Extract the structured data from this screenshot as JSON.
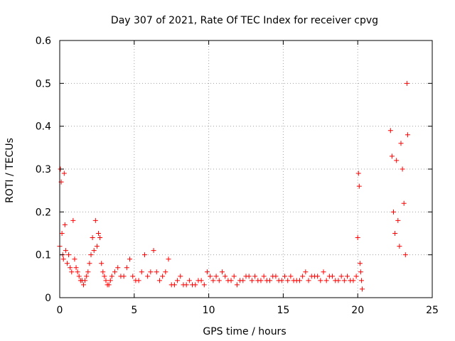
{
  "chart_data": {
    "type": "scatter",
    "title": "Day 307 of 2021, Rate Of TEC Index for receiver cpvg",
    "xlabel": "GPS time / hours",
    "ylabel": "ROTI / TECUs",
    "xlim": [
      0,
      25
    ],
    "ylim": [
      0,
      0.6
    ],
    "xticks": [
      0,
      5,
      10,
      15,
      20,
      25
    ],
    "xtick_labels": [
      "0",
      "5",
      "10",
      "15",
      "20",
      "25"
    ],
    "yticks": [
      0,
      0.1,
      0.2,
      0.3,
      0.4,
      0.5,
      0.6
    ],
    "ytick_labels": [
      "0",
      "0.1",
      "0.2",
      "0.3",
      "0.4",
      "0.5",
      "0.6"
    ],
    "grid": true,
    "marker": "+",
    "series_color": "#ff0000",
    "series": [
      {
        "x": [
          0.0,
          0.05,
          0.1,
          0.15,
          0.2,
          0.25,
          0.3,
          0.35,
          0.4,
          0.5,
          0.6,
          0.7,
          0.8,
          0.9,
          1.0,
          1.1,
          1.2,
          1.3,
          1.4,
          1.5,
          1.6,
          1.7,
          1.8,
          1.9,
          2.0,
          2.1,
          2.2,
          2.3,
          2.4,
          2.5,
          2.6,
          2.7,
          2.8,
          2.9,
          3.0,
          3.1,
          3.2,
          3.3,
          3.4,
          3.5,
          3.7,
          3.9,
          4.1,
          4.3,
          4.5,
          4.7,
          4.9,
          5.1,
          5.3,
          5.5,
          5.7,
          5.9,
          6.1,
          6.3,
          6.5,
          6.7,
          6.9,
          7.1,
          7.3,
          7.5,
          7.7,
          7.9,
          8.1,
          8.3,
          8.5,
          8.7,
          8.9,
          9.1,
          9.3,
          9.5,
          9.7,
          9.9,
          10.1,
          10.3,
          10.5,
          10.7,
          10.9,
          11.1,
          11.3,
          11.5,
          11.7,
          11.9,
          12.1,
          12.3,
          12.5,
          12.7,
          12.9,
          13.1,
          13.3,
          13.5,
          13.7,
          13.9,
          14.1,
          14.3,
          14.5,
          14.7,
          14.9,
          15.1,
          15.3,
          15.5,
          15.7,
          15.9,
          16.1,
          16.3,
          16.5,
          16.7,
          16.9,
          17.1,
          17.3,
          17.5,
          17.7,
          17.9,
          18.1,
          18.3,
          18.5,
          18.7,
          18.9,
          19.1,
          19.3,
          19.5,
          19.7,
          19.9,
          20.0,
          20.05,
          20.1,
          20.15,
          20.2,
          20.25,
          20.3,
          22.2,
          22.3,
          22.4,
          22.5,
          22.6,
          22.7,
          22.8,
          22.9,
          23.0,
          23.1,
          23.2,
          23.3,
          23.35
        ],
        "y": [
          0.12,
          0.3,
          0.27,
          0.15,
          0.1,
          0.09,
          0.29,
          0.17,
          0.11,
          0.08,
          0.1,
          0.07,
          0.06,
          0.18,
          0.09,
          0.07,
          0.06,
          0.05,
          0.04,
          0.04,
          0.03,
          0.04,
          0.05,
          0.06,
          0.08,
          0.1,
          0.14,
          0.11,
          0.18,
          0.12,
          0.15,
          0.14,
          0.08,
          0.06,
          0.05,
          0.04,
          0.03,
          0.03,
          0.04,
          0.05,
          0.06,
          0.07,
          0.05,
          0.05,
          0.07,
          0.09,
          0.05,
          0.04,
          0.04,
          0.06,
          0.1,
          0.05,
          0.06,
          0.11,
          0.06,
          0.04,
          0.05,
          0.06,
          0.09,
          0.03,
          0.03,
          0.04,
          0.05,
          0.03,
          0.03,
          0.04,
          0.03,
          0.03,
          0.04,
          0.04,
          0.03,
          0.06,
          0.05,
          0.04,
          0.05,
          0.04,
          0.06,
          0.05,
          0.04,
          0.04,
          0.05,
          0.03,
          0.04,
          0.04,
          0.05,
          0.05,
          0.04,
          0.05,
          0.04,
          0.04,
          0.05,
          0.04,
          0.04,
          0.05,
          0.05,
          0.04,
          0.04,
          0.05,
          0.04,
          0.05,
          0.04,
          0.04,
          0.04,
          0.05,
          0.06,
          0.04,
          0.05,
          0.05,
          0.05,
          0.04,
          0.06,
          0.04,
          0.05,
          0.05,
          0.04,
          0.04,
          0.05,
          0.04,
          0.05,
          0.04,
          0.04,
          0.05,
          0.14,
          0.29,
          0.26,
          0.08,
          0.06,
          0.04,
          0.02,
          0.39,
          0.33,
          0.2,
          0.15,
          0.32,
          0.18,
          0.12,
          0.36,
          0.3,
          0.22,
          0.1,
          0.5,
          0.38
        ]
      }
    ]
  }
}
